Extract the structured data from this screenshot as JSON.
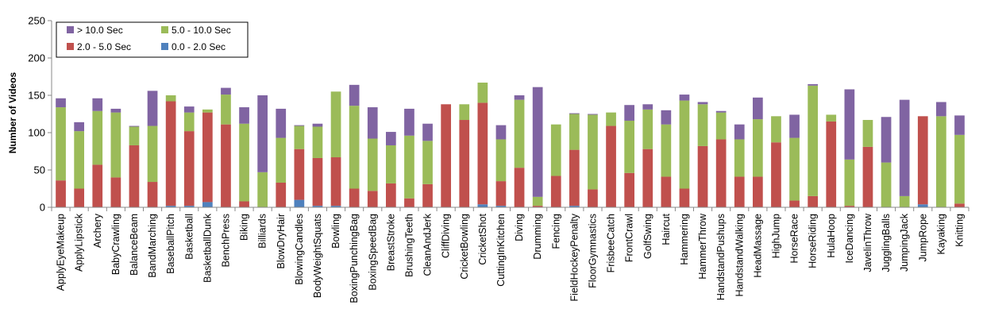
{
  "chart_data": {
    "type": "bar",
    "stacked": true,
    "title": "",
    "xlabel": "",
    "ylabel": "Number of Videos",
    "ylim": [
      0,
      250
    ],
    "yticks": [
      0,
      50,
      100,
      150,
      200,
      250
    ],
    "grid": false,
    "legend_position": "top-left",
    "categories": [
      "ApplyEyeMakeup",
      "ApplyLipstick",
      "Archery",
      "BabyCrawling",
      "BalanceBeam",
      "BandMarching",
      "BaseballPitch",
      "Basketball",
      "BasketballDunk",
      "BenchPress",
      "Biking",
      "Billiards",
      "BlowDryHair",
      "BlowingCandles",
      "BodyWeightSquats",
      "Bowling",
      "BoxingPunchingBag",
      "BoxingSpeedBag",
      "BreastStroke",
      "BrushingTeeth",
      "CleanAndJerk",
      "CliffDiving",
      "CricketBowling",
      "CricketShot",
      "CuttingInKitchen",
      "Diving",
      "Drumming",
      "Fencing",
      "FieldHockeyPenalty",
      "FloorGymnastics",
      "FrisbeeCatch",
      "FrontCrawl",
      "GolfSwing",
      "Haircut",
      "Hammering",
      "HammerThrow",
      "HandstandPushups",
      "HandstandWalking",
      "HeadMassage",
      "HighJump",
      "HorseRace",
      "HorseRiding",
      "HulaHoop",
      "IceDancing",
      "JavelinThrow",
      "JugglingBalls",
      "JumpingJack",
      "JumpRope",
      "Kayaking",
      "Knitting"
    ],
    "series": [
      {
        "name": "0.0 - 2.0 Sec",
        "color": "#4f81bd",
        "values": [
          0,
          0,
          0,
          0,
          0,
          0,
          2,
          2,
          7,
          0,
          0,
          0,
          0,
          10,
          2,
          2,
          0,
          0,
          0,
          0,
          0,
          0,
          0,
          4,
          2,
          0,
          0,
          0,
          2,
          0,
          0,
          0,
          0,
          0,
          0,
          0,
          0,
          0,
          0,
          0,
          0,
          0,
          0,
          0,
          0,
          0,
          0,
          4,
          0,
          0
        ]
      },
      {
        "name": "2.0 - 5.0 Sec",
        "color": "#c0504d",
        "values": [
          36,
          25,
          57,
          40,
          83,
          34,
          140,
          100,
          120,
          111,
          8,
          0,
          33,
          68,
          64,
          65,
          25,
          22,
          32,
          12,
          31,
          138,
          117,
          136,
          33,
          53,
          2,
          42,
          75,
          24,
          109,
          46,
          78,
          41,
          25,
          82,
          91,
          41,
          41,
          87,
          9,
          15,
          115,
          2,
          81,
          0,
          0,
          118,
          0,
          5
        ]
      },
      {
        "name": "5.0 - 10.0 Sec",
        "color": "#9bbb59",
        "values": [
          98,
          77,
          72,
          87,
          25,
          75,
          8,
          25,
          4,
          40,
          104,
          47,
          60,
          31,
          42,
          88,
          111,
          70,
          51,
          84,
          58,
          0,
          21,
          27,
          56,
          91,
          12,
          69,
          48,
          100,
          18,
          70,
          53,
          70,
          118,
          56,
          36,
          50,
          77,
          35,
          84,
          148,
          9,
          62,
          36,
          60,
          15,
          0,
          122,
          92
        ]
      },
      {
        "name": "> 10.0 Sec",
        "color": "#8064a2",
        "values": [
          12,
          12,
          17,
          5,
          1,
          47,
          0,
          8,
          0,
          9,
          22,
          103,
          39,
          1,
          4,
          0,
          28,
          42,
          18,
          36,
          23,
          0,
          0,
          0,
          19,
          6,
          147,
          0,
          1,
          1,
          0,
          21,
          7,
          19,
          8,
          3,
          2,
          20,
          29,
          0,
          31,
          2,
          0,
          94,
          0,
          61,
          129,
          0,
          19,
          26
        ]
      }
    ],
    "legend": [
      {
        "label": "> 10.0 Sec",
        "color": "#8064a2"
      },
      {
        "label": "5.0 - 10.0 Sec",
        "color": "#9bbb59"
      },
      {
        "label": "2.0 - 5.0 Sec",
        "color": "#c0504d"
      },
      {
        "label": "0.0 - 2.0 Sec",
        "color": "#4f81bd"
      }
    ]
  }
}
